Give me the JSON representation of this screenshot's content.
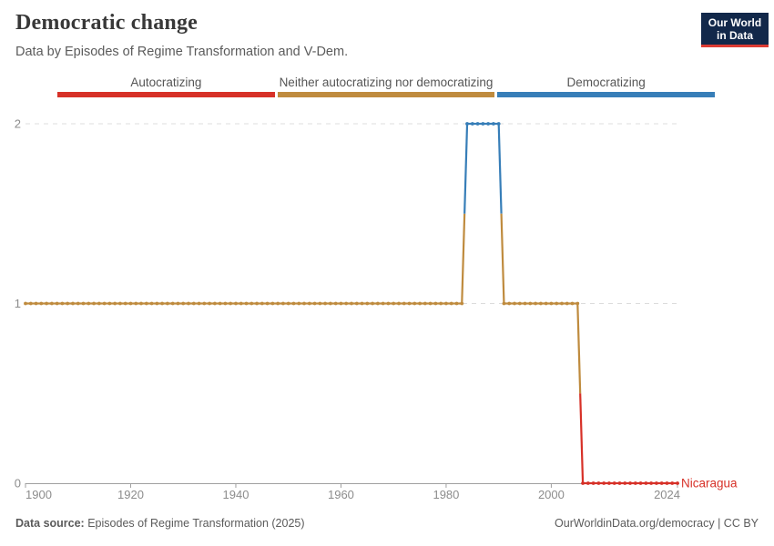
{
  "header": {
    "title": "Democratic change",
    "subtitle": "Data by Episodes of Regime Transformation and V-Dem.",
    "logo": {
      "line1": "Our World",
      "line2": "in Data",
      "bg_color": "#12284a",
      "accent_color": "#dc3b33"
    }
  },
  "legend": {
    "items": [
      {
        "label": "Autocratizing",
        "color": "#d73128"
      },
      {
        "label": "Neither autocratizing nor democratizing",
        "color": "#bf8b3e"
      },
      {
        "label": "Democratizing",
        "color": "#377eb8"
      }
    ]
  },
  "chart_data": {
    "type": "line",
    "title": "Democratic change",
    "entity": "Nicaragua",
    "entity_label_color": "#d73128",
    "xlim": [
      1900,
      2024
    ],
    "ylim": [
      0,
      2
    ],
    "x_ticks": [
      1900,
      1920,
      1940,
      1960,
      1980,
      2000,
      2024
    ],
    "y_ticks": [
      0,
      1,
      2
    ],
    "grid": "dashed-horizontal",
    "steps": [
      {
        "from": 1900,
        "to": 1983,
        "value": 1
      },
      {
        "from": 1984,
        "to": 1990,
        "value": 2
      },
      {
        "from": 1991,
        "to": 2005,
        "value": 1
      },
      {
        "from": 2006,
        "to": 2024,
        "value": 0
      }
    ],
    "value_colors": {
      "0": "#d73128",
      "1": "#bf8b3e",
      "2": "#377eb8"
    },
    "value_meanings": {
      "0": "Autocratizing",
      "1": "Neither autocratizing nor democratizing",
      "2": "Democratizing"
    },
    "axis_color": "#a0a0a0",
    "gridline_color": "#dcdcdc",
    "tick_label_color": "#8c8c8c"
  },
  "footer": {
    "source_label": "Data source:",
    "source_value": "Episodes of Regime Transformation (2025)",
    "site": "OurWorldinData.org/democracy",
    "separator": "|",
    "license": "CC BY"
  }
}
